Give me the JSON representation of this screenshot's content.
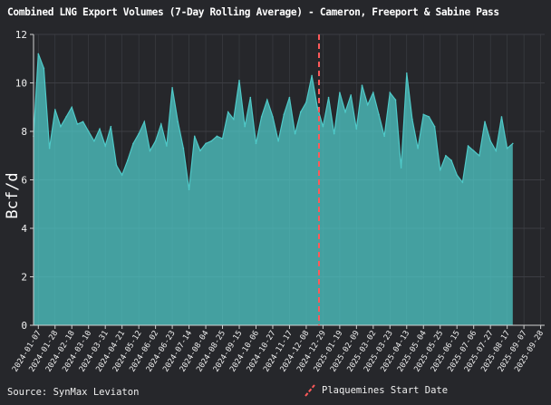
{
  "chart_data": {
    "type": "area",
    "title": "Combined LNG Export Volumes (7-Day Rolling Average) - Cameron, Freeport & Sabine Pass",
    "ylabel": "Bcf/d",
    "xlabel": "",
    "ylim": [
      0,
      12
    ],
    "xlim": [
      "2024-01-01",
      "2025-10-03"
    ],
    "y_ticks": [
      0,
      2,
      4,
      6,
      8,
      10,
      12
    ],
    "x_ticks": [
      "2024-01-07",
      "2024-01-28",
      "2024-02-18",
      "2024-03-10",
      "2024-03-31",
      "2024-04-21",
      "2024-05-12",
      "2024-06-02",
      "2024-06-23",
      "2024-07-14",
      "2024-08-04",
      "2024-08-25",
      "2024-09-15",
      "2024-10-06",
      "2024-10-27",
      "2024-11-17",
      "2024-12-08",
      "2024-12-29",
      "2025-01-19",
      "2025-02-09",
      "2025-03-02",
      "2025-03-23",
      "2025-04-13",
      "2025-05-04",
      "2025-05-25",
      "2025-06-15",
      "2025-07-06",
      "2025-07-27",
      "2025-08-17",
      "2025-09-07",
      "2025-09-28"
    ],
    "grid": true,
    "series": [
      {
        "color": "#4fc9c8",
        "x": [
          "2024-01-01",
          "2024-01-07",
          "2024-01-14",
          "2024-01-21",
          "2024-01-28",
          "2024-02-04",
          "2024-02-11",
          "2024-02-18",
          "2024-02-25",
          "2024-03-03",
          "2024-03-10",
          "2024-03-17",
          "2024-03-24",
          "2024-03-31",
          "2024-04-07",
          "2024-04-14",
          "2024-04-21",
          "2024-04-28",
          "2024-05-05",
          "2024-05-12",
          "2024-05-19",
          "2024-05-26",
          "2024-06-02",
          "2024-06-09",
          "2024-06-16",
          "2024-06-23",
          "2024-06-30",
          "2024-07-07",
          "2024-07-14",
          "2024-07-21",
          "2024-07-28",
          "2024-08-04",
          "2024-08-11",
          "2024-08-18",
          "2024-08-25",
          "2024-09-01",
          "2024-09-08",
          "2024-09-15",
          "2024-09-22",
          "2024-09-29",
          "2024-10-06",
          "2024-10-13",
          "2024-10-20",
          "2024-10-27",
          "2024-11-03",
          "2024-11-10",
          "2024-11-17",
          "2024-11-24",
          "2024-12-01",
          "2024-12-08",
          "2024-12-15",
          "2024-12-22",
          "2024-12-29",
          "2025-01-05",
          "2025-01-12",
          "2025-01-19",
          "2025-01-26",
          "2025-02-02",
          "2025-02-09",
          "2025-02-16",
          "2025-02-23",
          "2025-03-02",
          "2025-03-09",
          "2025-03-16",
          "2025-03-23",
          "2025-03-30",
          "2025-04-06",
          "2025-04-13",
          "2025-04-20",
          "2025-04-27",
          "2025-05-04",
          "2025-05-11",
          "2025-05-18",
          "2025-05-25",
          "2025-06-01",
          "2025-06-08",
          "2025-06-15",
          "2025-06-22",
          "2025-06-29",
          "2025-07-06",
          "2025-07-13",
          "2025-07-20",
          "2025-07-27",
          "2025-08-03",
          "2025-08-10",
          "2025-08-17",
          "2025-08-24"
        ],
        "values": [
          7.8,
          11.2,
          10.6,
          7.3,
          8.9,
          8.2,
          8.6,
          9.0,
          8.3,
          8.4,
          8.0,
          7.6,
          8.1,
          7.4,
          8.2,
          6.6,
          6.2,
          6.8,
          7.5,
          7.9,
          8.4,
          7.2,
          7.6,
          8.3,
          7.4,
          9.8,
          8.4,
          7.3,
          5.6,
          7.8,
          7.2,
          7.5,
          7.6,
          7.8,
          7.7,
          8.8,
          8.5,
          10.1,
          8.2,
          9.4,
          7.5,
          8.6,
          9.3,
          8.6,
          7.6,
          8.7,
          9.4,
          7.9,
          8.8,
          9.2,
          10.3,
          9.0,
          8.2,
          9.4,
          7.9,
          9.6,
          8.8,
          9.5,
          8.1,
          9.9,
          9.1,
          9.6,
          8.7,
          7.8,
          9.6,
          9.3,
          6.5,
          10.4,
          8.5,
          7.3,
          8.7,
          8.6,
          8.2,
          6.4,
          7.0,
          6.8,
          6.2,
          5.9,
          7.4,
          7.2,
          7.0,
          8.4,
          7.6,
          7.2,
          8.6,
          7.3,
          7.5
        ]
      }
    ],
    "annotations": [
      {
        "type": "vline",
        "x": "2024-12-24",
        "color": "#ff5a5a",
        "label": "Plaquemines Start Date"
      }
    ],
    "legend": {
      "position": "bottom-center",
      "entries": [
        "Plaquemines Start Date"
      ]
    },
    "source": "Source: SynMax Leviaton"
  }
}
